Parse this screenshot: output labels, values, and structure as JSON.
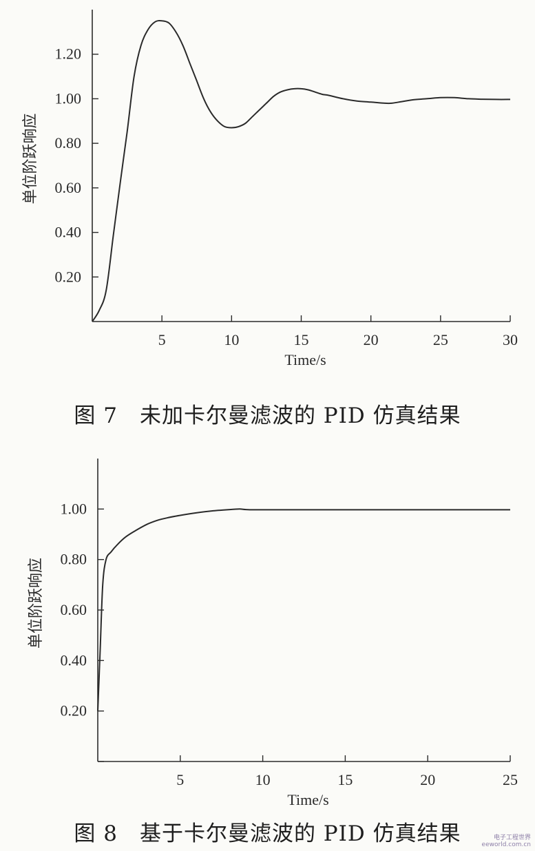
{
  "chart_data": [
    {
      "type": "line",
      "title": "图 7　未加卡尔曼滤波的 PID 仿真结果",
      "xlabel": "Time/s",
      "ylabel": "单位阶跃响应",
      "xlim": [
        0,
        30
      ],
      "ylim": [
        0,
        1.4
      ],
      "xticks": [
        5,
        10,
        15,
        20,
        25,
        30
      ],
      "yticks": [
        0.2,
        0.4,
        0.6,
        0.8,
        1.0,
        1.2
      ],
      "ytick_labels": [
        "0.20",
        "0.40",
        "0.60",
        "0.80",
        "1.00",
        "1.20"
      ],
      "grid": false,
      "series": [
        {
          "x": [
            0,
            0.5,
            1,
            1.5,
            2,
            2.5,
            3,
            3.5,
            4,
            4.5,
            5,
            5.5,
            6,
            6.5,
            7,
            7.5,
            8,
            8.5,
            9,
            9.5,
            10,
            10.5,
            11,
            11.5,
            12,
            12.5,
            13,
            13.5,
            14,
            14.5,
            15,
            15.5,
            16,
            16.5,
            17,
            18,
            19,
            20,
            21,
            21.5,
            22,
            23,
            24,
            25,
            26,
            27,
            28,
            29,
            30
          ],
          "y": [
            0,
            0.05,
            0.14,
            0.38,
            0.62,
            0.85,
            1.1,
            1.24,
            1.31,
            1.345,
            1.35,
            1.34,
            1.3,
            1.24,
            1.16,
            1.08,
            1.0,
            0.94,
            0.9,
            0.875,
            0.87,
            0.875,
            0.89,
            0.92,
            0.95,
            0.98,
            1.01,
            1.03,
            1.04,
            1.045,
            1.045,
            1.04,
            1.03,
            1.02,
            1.015,
            1.0,
            0.99,
            0.985,
            0.98,
            0.98,
            0.985,
            0.995,
            1.0,
            1.005,
            1.005,
            1.0,
            0.998,
            0.997,
            0.997
          ]
        }
      ]
    },
    {
      "type": "line",
      "title": "图 8　基于卡尔曼滤波的 PID 仿真结果",
      "xlabel": "Time/s",
      "ylabel": "单位阶跃响应",
      "xlim": [
        0,
        25
      ],
      "ylim": [
        0,
        1.2
      ],
      "xticks": [
        5,
        10,
        15,
        20,
        25
      ],
      "yticks": [
        0.2,
        0.4,
        0.6,
        0.8,
        1.0
      ],
      "ytick_labels": [
        "0.20",
        "0.40",
        "0.60",
        "0.80",
        "1.00"
      ],
      "grid": false,
      "series": [
        {
          "x": [
            0,
            0.15,
            0.3,
            0.5,
            0.8,
            1.2,
            1.7,
            2.3,
            3,
            3.6,
            4.2,
            5,
            6,
            7,
            8,
            8.6,
            9,
            10,
            15,
            20,
            25
          ],
          "y": [
            0.2,
            0.45,
            0.7,
            0.8,
            0.83,
            0.86,
            0.89,
            0.915,
            0.94,
            0.955,
            0.965,
            0.975,
            0.985,
            0.993,
            0.998,
            1.0,
            0.998,
            0.997,
            0.997,
            0.997,
            0.997
          ]
        }
      ]
    }
  ],
  "captions": {
    "fig7": "图 7　未加卡尔曼滤波的 PID 仿真结果",
    "fig8": "图 8　基于卡尔曼滤波的 PID 仿真结果"
  },
  "watermark": {
    "line1": "电子工程世界",
    "line2": "eeworld.com.cn"
  }
}
